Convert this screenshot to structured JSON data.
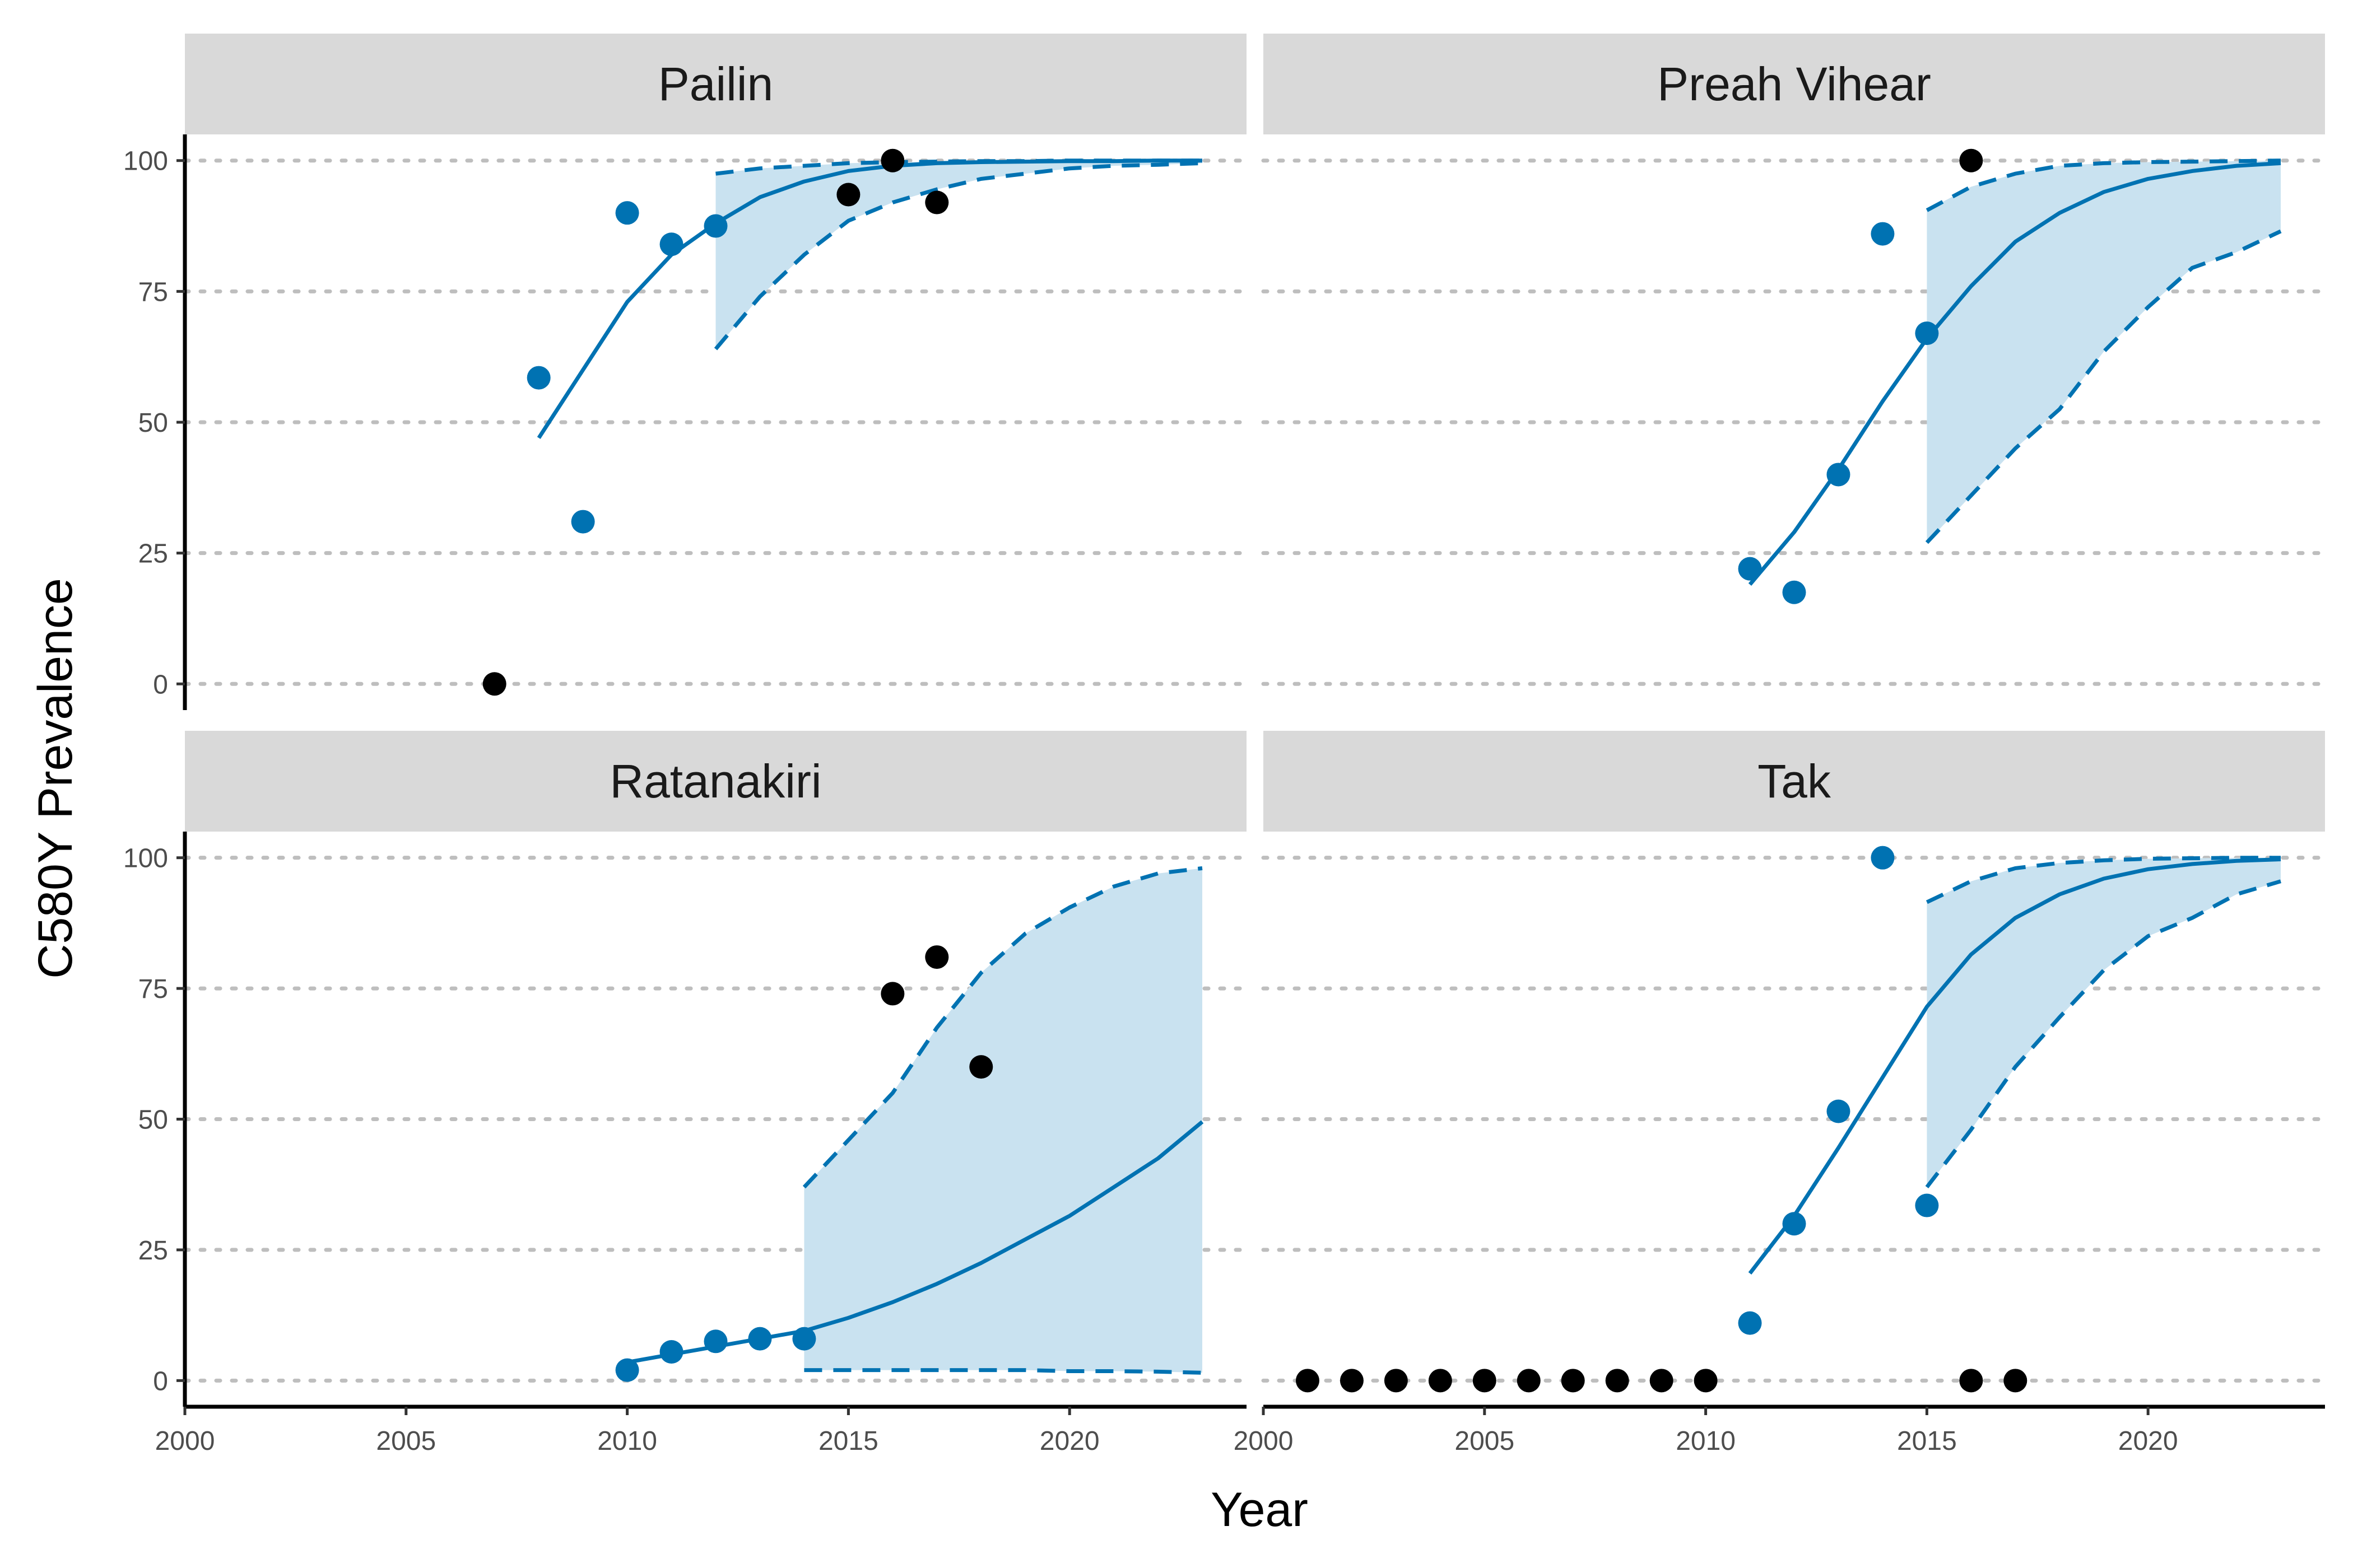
{
  "figure": {
    "xlabel": "Year",
    "ylabel": "C580Y Prevalence"
  },
  "colors": {
    "model": "#0072B2",
    "band": "#c9e2f0",
    "observed_fit": "#0072B2",
    "observed_holdout": "#000000",
    "strip": "#d9d9d9",
    "grid": "#bebebe"
  },
  "axes": {
    "x": {
      "ticks": [
        2000,
        2005,
        2010,
        2015,
        2020
      ],
      "tick_labels": [
        "2000",
        "2005",
        "2010",
        "2015",
        "2020"
      ],
      "lim": [
        2000,
        2024
      ]
    },
    "y": {
      "ticks": [
        0,
        25,
        50,
        75,
        100
      ],
      "tick_labels": [
        "0",
        "25",
        "50",
        "75",
        "100"
      ],
      "lim": [
        -5,
        105
      ]
    }
  },
  "chart_data": [
    {
      "type": "line",
      "panel": "Pailin",
      "title": "Pailin",
      "xlabel": "Year",
      "ylabel": "C580Y Prevalence",
      "model_mean": {
        "x": [
          2008,
          2009,
          2010,
          2011,
          2012,
          2013,
          2014,
          2015,
          2016,
          2017,
          2018,
          2019,
          2020,
          2021,
          2022,
          2023
        ],
        "y": [
          47,
          60,
          73,
          82,
          88,
          93,
          96,
          98,
          99,
          99.5,
          99.7,
          99.8,
          99.9,
          99.9,
          100,
          100
        ]
      },
      "band": {
        "x": [
          2012,
          2013,
          2014,
          2015,
          2016,
          2017,
          2018,
          2019,
          2020,
          2021,
          2022,
          2023
        ],
        "lower": [
          64,
          74,
          82,
          88.5,
          92,
          94.5,
          96.5,
          97.5,
          98.5,
          99,
          99.2,
          99.5
        ],
        "upper": [
          97.5,
          98.5,
          99,
          99.5,
          99.7,
          99.8,
          99.9,
          99.9,
          100,
          100,
          100,
          100
        ]
      },
      "observed_fit": {
        "x": [
          2008,
          2009,
          2010,
          2011,
          2012
        ],
        "y": [
          58.5,
          31,
          90,
          84,
          87.5
        ]
      },
      "observed_holdout": {
        "x": [
          2007,
          2015,
          2016,
          2017
        ],
        "y": [
          0,
          93.5,
          100,
          92
        ]
      }
    },
    {
      "type": "line",
      "panel": "Preah Vihear",
      "title": "Preah Vihear",
      "xlabel": "Year",
      "ylabel": "C580Y Prevalence",
      "model_mean": {
        "x": [
          2011,
          2012,
          2013,
          2014,
          2015,
          2016,
          2017,
          2018,
          2019,
          2020,
          2021,
          2022,
          2023
        ],
        "y": [
          19,
          29,
          41,
          54,
          66,
          76,
          84.5,
          90,
          94,
          96.5,
          98,
          99,
          99.5
        ]
      },
      "band": {
        "x": [
          2015,
          2016,
          2017,
          2018,
          2019,
          2020,
          2021,
          2022,
          2023
        ],
        "lower": [
          27,
          36,
          45,
          52.5,
          63.5,
          72,
          79.5,
          82.5,
          86.5
        ],
        "upper": [
          90.5,
          95,
          97.5,
          99,
          99.5,
          99.7,
          99.8,
          99.9,
          100
        ]
      },
      "observed_fit": {
        "x": [
          2011,
          2012,
          2013,
          2014,
          2015
        ],
        "y": [
          22,
          17.5,
          40,
          86,
          67
        ]
      },
      "observed_holdout": {
        "x": [
          2016
        ],
        "y": [
          100
        ]
      }
    },
    {
      "type": "line",
      "panel": "Ratanakiri",
      "title": "Ratanakiri",
      "xlabel": "Year",
      "ylabel": "C580Y Prevalence",
      "model_mean": {
        "x": [
          2010,
          2011,
          2012,
          2013,
          2014,
          2015,
          2016,
          2017,
          2018,
          2019,
          2020,
          2021,
          2022,
          2023
        ],
        "y": [
          3.5,
          5,
          6.5,
          8,
          9.5,
          12,
          15,
          18.5,
          22.5,
          27,
          31.5,
          37,
          42.5,
          49.5
        ]
      },
      "band": {
        "x": [
          2014,
          2015,
          2016,
          2017,
          2018,
          2019,
          2020,
          2021,
          2022,
          2023
        ],
        "lower": [
          2,
          2,
          2,
          2,
          2,
          2,
          1.8,
          1.8,
          1.7,
          1.5
        ],
        "upper": [
          37,
          46,
          55,
          67.5,
          78,
          85.5,
          90.5,
          94.5,
          97,
          98
        ]
      },
      "observed_fit": {
        "x": [
          2010,
          2011,
          2012,
          2013,
          2014
        ],
        "y": [
          2,
          5.5,
          7.5,
          8,
          8
        ]
      },
      "observed_holdout": {
        "x": [
          2016,
          2017,
          2018
        ],
        "y": [
          74,
          81,
          60
        ]
      }
    },
    {
      "type": "line",
      "panel": "Tak",
      "title": "Tak",
      "xlabel": "Year",
      "ylabel": "C580Y Prevalence",
      "model_mean": {
        "x": [
          2011,
          2012,
          2013,
          2014,
          2015,
          2016,
          2017,
          2018,
          2019,
          2020,
          2021,
          2022,
          2023
        ],
        "y": [
          20.5,
          31.5,
          44.5,
          58,
          71.5,
          81.5,
          88.5,
          93,
          96,
          97.8,
          98.8,
          99.4,
          99.7
        ]
      },
      "band": {
        "x": [
          2015,
          2016,
          2017,
          2018,
          2019,
          2020,
          2021,
          2022,
          2023
        ],
        "lower": [
          37,
          48,
          60,
          69.5,
          78.5,
          85,
          88.5,
          93,
          95.5
        ],
        "upper": [
          91.5,
          95.5,
          98,
          99,
          99.5,
          99.8,
          99.9,
          100,
          100
        ]
      },
      "observed_fit": {
        "x": [
          2011,
          2012,
          2013,
          2014,
          2015
        ],
        "y": [
          11,
          30,
          51.5,
          100,
          33.5
        ]
      },
      "observed_holdout": {
        "x": [
          2001,
          2002,
          2003,
          2004,
          2005,
          2006,
          2007,
          2008,
          2009,
          2010,
          2016,
          2017
        ],
        "y": [
          0,
          0,
          0,
          0,
          0,
          0,
          0,
          0,
          0,
          0,
          0,
          0
        ]
      }
    }
  ]
}
